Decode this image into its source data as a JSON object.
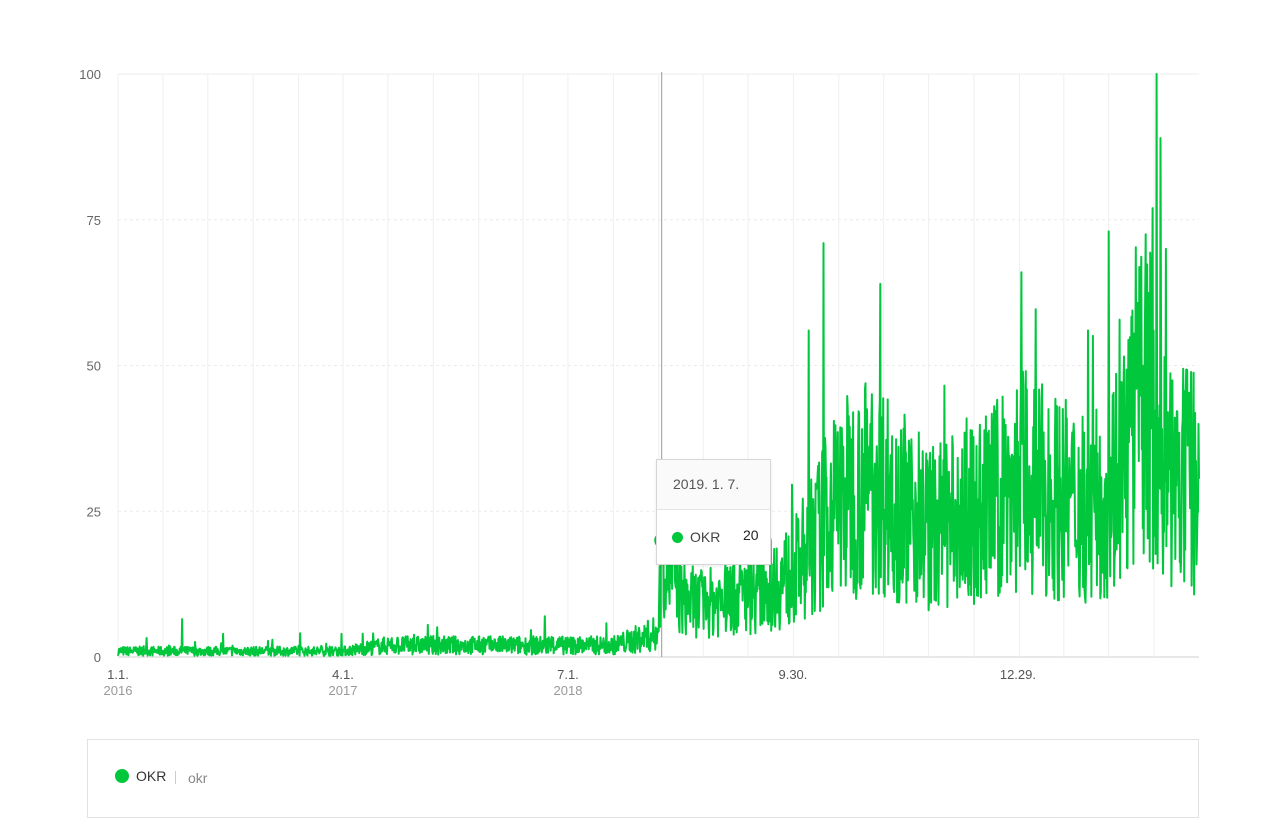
{
  "chart_data": {
    "type": "line",
    "ylim": [
      0,
      100
    ],
    "y_ticks": [
      0,
      25,
      50,
      75,
      100
    ],
    "x_ticks": [
      {
        "date": "2016-01-01",
        "label": "1.1.",
        "sub": "2016"
      },
      {
        "date": "2017-04-01",
        "label": "4.1.",
        "sub": "2017"
      },
      {
        "date": "2018-07-01",
        "label": "7.1.",
        "sub": "2018"
      },
      {
        "date": "2019-09-30",
        "label": "9.30.",
        "sub": ""
      },
      {
        "date": "2020-12-29",
        "label": "12.29.",
        "sub": ""
      }
    ],
    "x_range": [
      "2016-01-01",
      "2021-12-31"
    ],
    "grid": true,
    "series": [
      {
        "name": "OKR",
        "color": "#00c73c",
        "points": [
          [
            "2016-01-01",
            1
          ],
          [
            "2016-04-01",
            1
          ],
          [
            "2016-07-01",
            1
          ],
          [
            "2016-10-01",
            1
          ],
          [
            "2017-01-01",
            1
          ],
          [
            "2017-04-01",
            1
          ],
          [
            "2017-07-01",
            2
          ],
          [
            "2017-10-01",
            2
          ],
          [
            "2018-01-01",
            2
          ],
          [
            "2018-04-01",
            2
          ],
          [
            "2018-07-01",
            2
          ],
          [
            "2018-10-01",
            2
          ],
          [
            "2018-12-31",
            4
          ],
          [
            "2019-01-07",
            20
          ],
          [
            "2019-02-15",
            10
          ],
          [
            "2019-04-01",
            9
          ],
          [
            "2019-07-01",
            11
          ],
          [
            "2019-09-30",
            14
          ],
          [
            "2019-11-15",
            20
          ],
          [
            "2020-01-01",
            27
          ],
          [
            "2020-03-15",
            30
          ],
          [
            "2020-07-01",
            22
          ],
          [
            "2020-10-01",
            24
          ],
          [
            "2020-12-29",
            30
          ],
          [
            "2021-03-01",
            28
          ],
          [
            "2021-06-01",
            25
          ],
          [
            "2021-08-01",
            34
          ],
          [
            "2021-09-15",
            45
          ],
          [
            "2021-11-01",
            30
          ],
          [
            "2021-12-31",
            30
          ]
        ],
        "peaks": [
          [
            "2016-05-10",
            6.5
          ],
          [
            "2018-05-15",
            7
          ],
          [
            "2019-11-01",
            56
          ],
          [
            "2019-12-01",
            71
          ],
          [
            "2020-03-25",
            64
          ],
          [
            "2021-01-05",
            66
          ],
          [
            "2021-05-20",
            56
          ],
          [
            "2021-07-01",
            73
          ],
          [
            "2021-09-28",
            77
          ],
          [
            "2021-10-06",
            100
          ],
          [
            "2021-10-14",
            89
          ],
          [
            "2021-10-25",
            70
          ]
        ]
      }
    ],
    "tooltip": {
      "date": "2019. 1. 7.",
      "value": 20,
      "series": "OKR",
      "x": "2019-01-07"
    }
  },
  "legend": {
    "term": "OKR",
    "sub": "okr"
  }
}
